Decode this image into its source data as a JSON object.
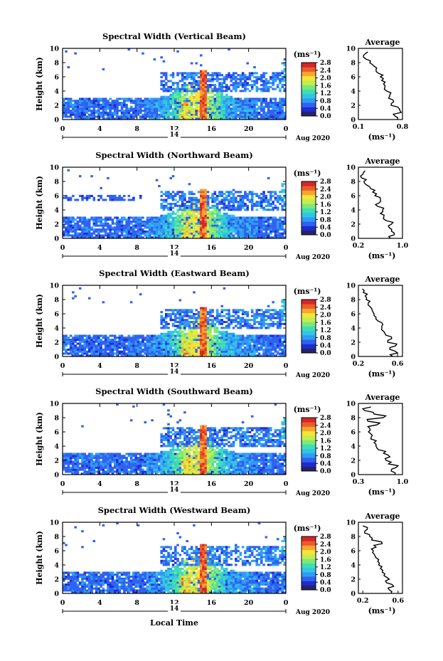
{
  "figure": {
    "xlabel": "Local Time",
    "date_label": "Aug 2020",
    "day_label": "14",
    "ylabel": "Height (km)",
    "colorbar_unit": "(ms⁻¹)",
    "profile_title": "Average",
    "profile_xlabel": "(ms⁻¹)"
  },
  "colors": {
    "colormap": [
      "#242466",
      "#1f2bd0",
      "#2f62ef",
      "#2f9bf5",
      "#34c4e6",
      "#3ddfb2",
      "#7fe879",
      "#c2ee4c",
      "#f5e43a",
      "#f7a62f",
      "#ef5a2a",
      "#d5262a"
    ]
  },
  "chart_data": [
    {
      "type": "heatmap",
      "title": "Spectral Width (Vertical Beam)",
      "x_ticks": [
        "0",
        "4",
        "8",
        "12",
        "16",
        "20",
        "0"
      ],
      "xlim": [
        0,
        24
      ],
      "ylim": [
        0,
        10
      ],
      "y_ticks": [
        "0",
        "2",
        "4",
        "6",
        "8",
        "10"
      ],
      "colorbar_ticks": [
        "0.0",
        "0.4",
        "0.8",
        "1.2",
        "1.6",
        "2.0",
        "2.4",
        "2.8"
      ],
      "clim": [
        0,
        2.8
      ],
      "profile": {
        "x_ticks": [
          "0.1",
          "0.8"
        ],
        "xlim": [
          0.1,
          0.8
        ],
        "heights": [
          0,
          0.5,
          1,
          1.5,
          2,
          2.5,
          3,
          3.5,
          4,
          4.5,
          5,
          5.5,
          6,
          6.5,
          7,
          7.5,
          8,
          8.5,
          9,
          9.5
        ],
        "values": [
          0.72,
          0.68,
          0.78,
          0.75,
          0.62,
          0.66,
          0.58,
          0.6,
          0.55,
          0.52,
          0.5,
          0.47,
          0.45,
          0.42,
          0.38,
          0.35,
          0.28,
          0.22,
          0.18,
          0.25
        ]
      }
    },
    {
      "type": "heatmap",
      "title": "Spectral Width (Northward Beam)",
      "x_ticks": [
        "0",
        "4",
        "8",
        "12",
        "16",
        "20",
        "0"
      ],
      "xlim": [
        0,
        24
      ],
      "ylim": [
        0,
        10
      ],
      "y_ticks": [
        "0",
        "2",
        "4",
        "6",
        "8",
        "10"
      ],
      "colorbar_ticks": [
        "0.0",
        "0.4",
        "0.8",
        "1.2",
        "1.6",
        "2.0",
        "2.4",
        "2.8"
      ],
      "clim": [
        0,
        2.8
      ],
      "profile": {
        "x_ticks": [
          "0.2",
          "1.0"
        ],
        "xlim": [
          0.2,
          1.0
        ],
        "heights": [
          0,
          0.5,
          1,
          1.5,
          2,
          2.5,
          3,
          3.5,
          4,
          4.5,
          5,
          5.5,
          6,
          6.5,
          7,
          7.5,
          8,
          8.5,
          9,
          9.5
        ],
        "values": [
          0.78,
          0.85,
          0.8,
          0.76,
          0.8,
          0.7,
          0.66,
          0.6,
          0.64,
          0.55,
          0.58,
          0.6,
          0.5,
          0.46,
          0.42,
          0.35,
          0.3,
          0.26,
          0.28,
          0.32
        ]
      }
    },
    {
      "type": "heatmap",
      "title": "Spectral Width (Eastward Beam)",
      "x_ticks": [
        "0",
        "4",
        "8",
        "12",
        "16",
        "20",
        "0"
      ],
      "xlim": [
        0,
        24
      ],
      "ylim": [
        0,
        10
      ],
      "y_ticks": [
        "0",
        "2",
        "4",
        "6",
        "8",
        "10"
      ],
      "colorbar_ticks": [
        "0.0",
        "0.4",
        "0.8",
        "1.2",
        "1.6",
        "2.0",
        "2.4",
        "2.8"
      ],
      "clim": [
        0,
        2.8
      ],
      "profile": {
        "x_ticks": [
          "0.2",
          "0.6"
        ],
        "xlim": [
          0.2,
          0.65
        ],
        "heights": [
          0,
          0.5,
          1,
          1.5,
          2,
          2.5,
          3,
          3.5,
          4,
          4.5,
          5,
          5.5,
          6,
          6.5,
          7,
          7.5,
          8,
          8.5,
          9,
          9.5
        ],
        "values": [
          0.55,
          0.6,
          0.52,
          0.58,
          0.5,
          0.54,
          0.48,
          0.46,
          0.44,
          0.45,
          0.4,
          0.38,
          0.36,
          0.34,
          0.32,
          0.3,
          0.28,
          0.27,
          0.25,
          0.24
        ]
      }
    },
    {
      "type": "heatmap",
      "title": "Spectral Width (Southward Beam)",
      "x_ticks": [
        "0",
        "4",
        "8",
        "12",
        "16",
        "20",
        "0"
      ],
      "xlim": [
        0,
        24
      ],
      "ylim": [
        0,
        10
      ],
      "y_ticks": [
        "0",
        "2",
        "4",
        "6",
        "8",
        "10"
      ],
      "colorbar_ticks": [
        "0.0",
        "0.4",
        "0.8",
        "1.2",
        "1.6",
        "2.0",
        "2.4",
        "2.8"
      ],
      "clim": [
        0,
        2.8
      ],
      "profile": {
        "x_ticks": [
          "0.3",
          "1.0"
        ],
        "xlim": [
          0.3,
          1.0
        ],
        "heights": [
          0,
          0.5,
          1,
          1.5,
          2,
          2.5,
          3,
          3.5,
          4,
          4.5,
          5,
          5.5,
          6,
          6.5,
          7,
          7.5,
          8,
          8.5,
          9,
          9.5
        ],
        "values": [
          0.88,
          0.82,
          0.9,
          0.78,
          0.74,
          0.8,
          0.7,
          0.62,
          0.58,
          0.55,
          0.5,
          0.52,
          0.46,
          0.48,
          0.6,
          0.45,
          0.7,
          0.55,
          0.4,
          0.5
        ]
      }
    },
    {
      "type": "heatmap",
      "title": "Spectral Width (Westward Beam)",
      "x_ticks": [
        "0",
        "4",
        "8",
        "12",
        "16",
        "20",
        "0"
      ],
      "xlim": [
        0,
        24
      ],
      "ylim": [
        0,
        10
      ],
      "y_ticks": [
        "0",
        "2",
        "4",
        "6",
        "8",
        "10"
      ],
      "colorbar_ticks": [
        "0.0",
        "0.4",
        "0.8",
        "1.2",
        "1.6",
        "2.0",
        "2.4",
        "2.8"
      ],
      "clim": [
        0,
        2.8
      ],
      "profile": {
        "x_ticks": [
          "0.2",
          "0.6"
        ],
        "xlim": [
          0.15,
          0.65
        ],
        "heights": [
          0,
          0.5,
          1,
          1.5,
          2,
          2.5,
          3,
          3.5,
          4,
          4.5,
          5,
          5.5,
          6,
          6.5,
          7,
          7.5,
          8,
          8.5,
          9,
          9.5
        ],
        "values": [
          0.52,
          0.5,
          0.55,
          0.47,
          0.5,
          0.44,
          0.42,
          0.4,
          0.38,
          0.37,
          0.35,
          0.33,
          0.32,
          0.35,
          0.42,
          0.3,
          0.28,
          0.22,
          0.25,
          0.2
        ]
      }
    }
  ]
}
